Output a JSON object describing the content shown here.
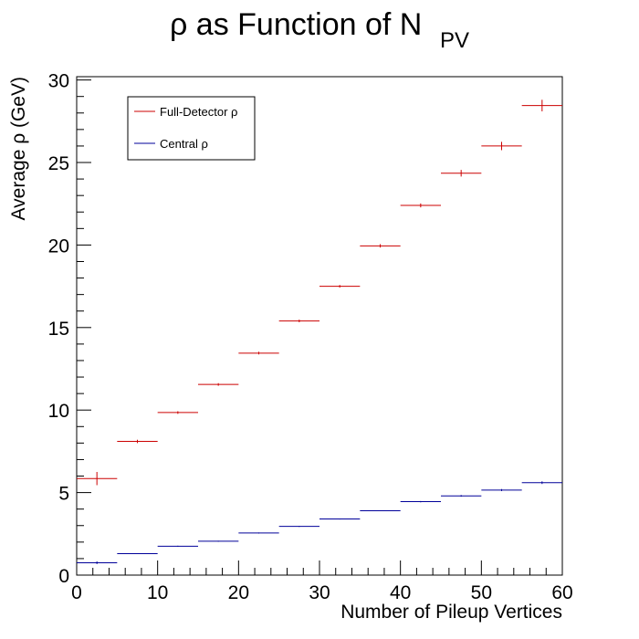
{
  "chart_data": {
    "type": "scatter",
    "title": "ρ as Function of N",
    "title_subscript": "PV",
    "xlabel": "Number of Pileup Vertices",
    "ylabel": "Average ρ (GeV)",
    "xlim": [
      0,
      60
    ],
    "ylim": [
      0,
      30.2
    ],
    "x_ticks": [
      "0",
      "10",
      "20",
      "30",
      "40",
      "50",
      "60"
    ],
    "y_ticks": [
      "0",
      "5",
      "10",
      "15",
      "20",
      "25",
      "30"
    ],
    "x_tick_values": [
      0,
      10,
      20,
      30,
      40,
      50,
      60
    ],
    "y_tick_values": [
      0,
      5,
      10,
      15,
      20,
      25,
      30
    ],
    "grid": false,
    "legend_position": "top-left",
    "bin_edges": [
      0,
      5,
      10,
      15,
      20,
      25,
      30,
      35,
      40,
      45,
      50,
      55,
      60
    ],
    "x": [
      2.5,
      7.5,
      12.5,
      17.5,
      22.5,
      27.5,
      32.5,
      37.5,
      42.5,
      47.5,
      52.5,
      57.5
    ],
    "series": [
      {
        "name": "Full-Detector ρ",
        "color": "#cc0000",
        "values": [
          5.85,
          8.1,
          9.85,
          11.55,
          13.45,
          15.4,
          17.5,
          19.95,
          22.4,
          24.35,
          26.0,
          28.45
        ],
        "errors": [
          0.4,
          0.1,
          0.08,
          0.08,
          0.08,
          0.08,
          0.08,
          0.1,
          0.12,
          0.2,
          0.25,
          0.35
        ]
      },
      {
        "name": "Central ρ",
        "color": "#000099",
        "values": [
          0.75,
          1.3,
          1.75,
          2.05,
          2.55,
          2.95,
          3.4,
          3.9,
          4.45,
          4.8,
          5.15,
          5.6
        ],
        "errors": [
          0.08,
          0.03,
          0.03,
          0.03,
          0.03,
          0.03,
          0.03,
          0.03,
          0.04,
          0.05,
          0.06,
          0.08
        ]
      }
    ]
  }
}
